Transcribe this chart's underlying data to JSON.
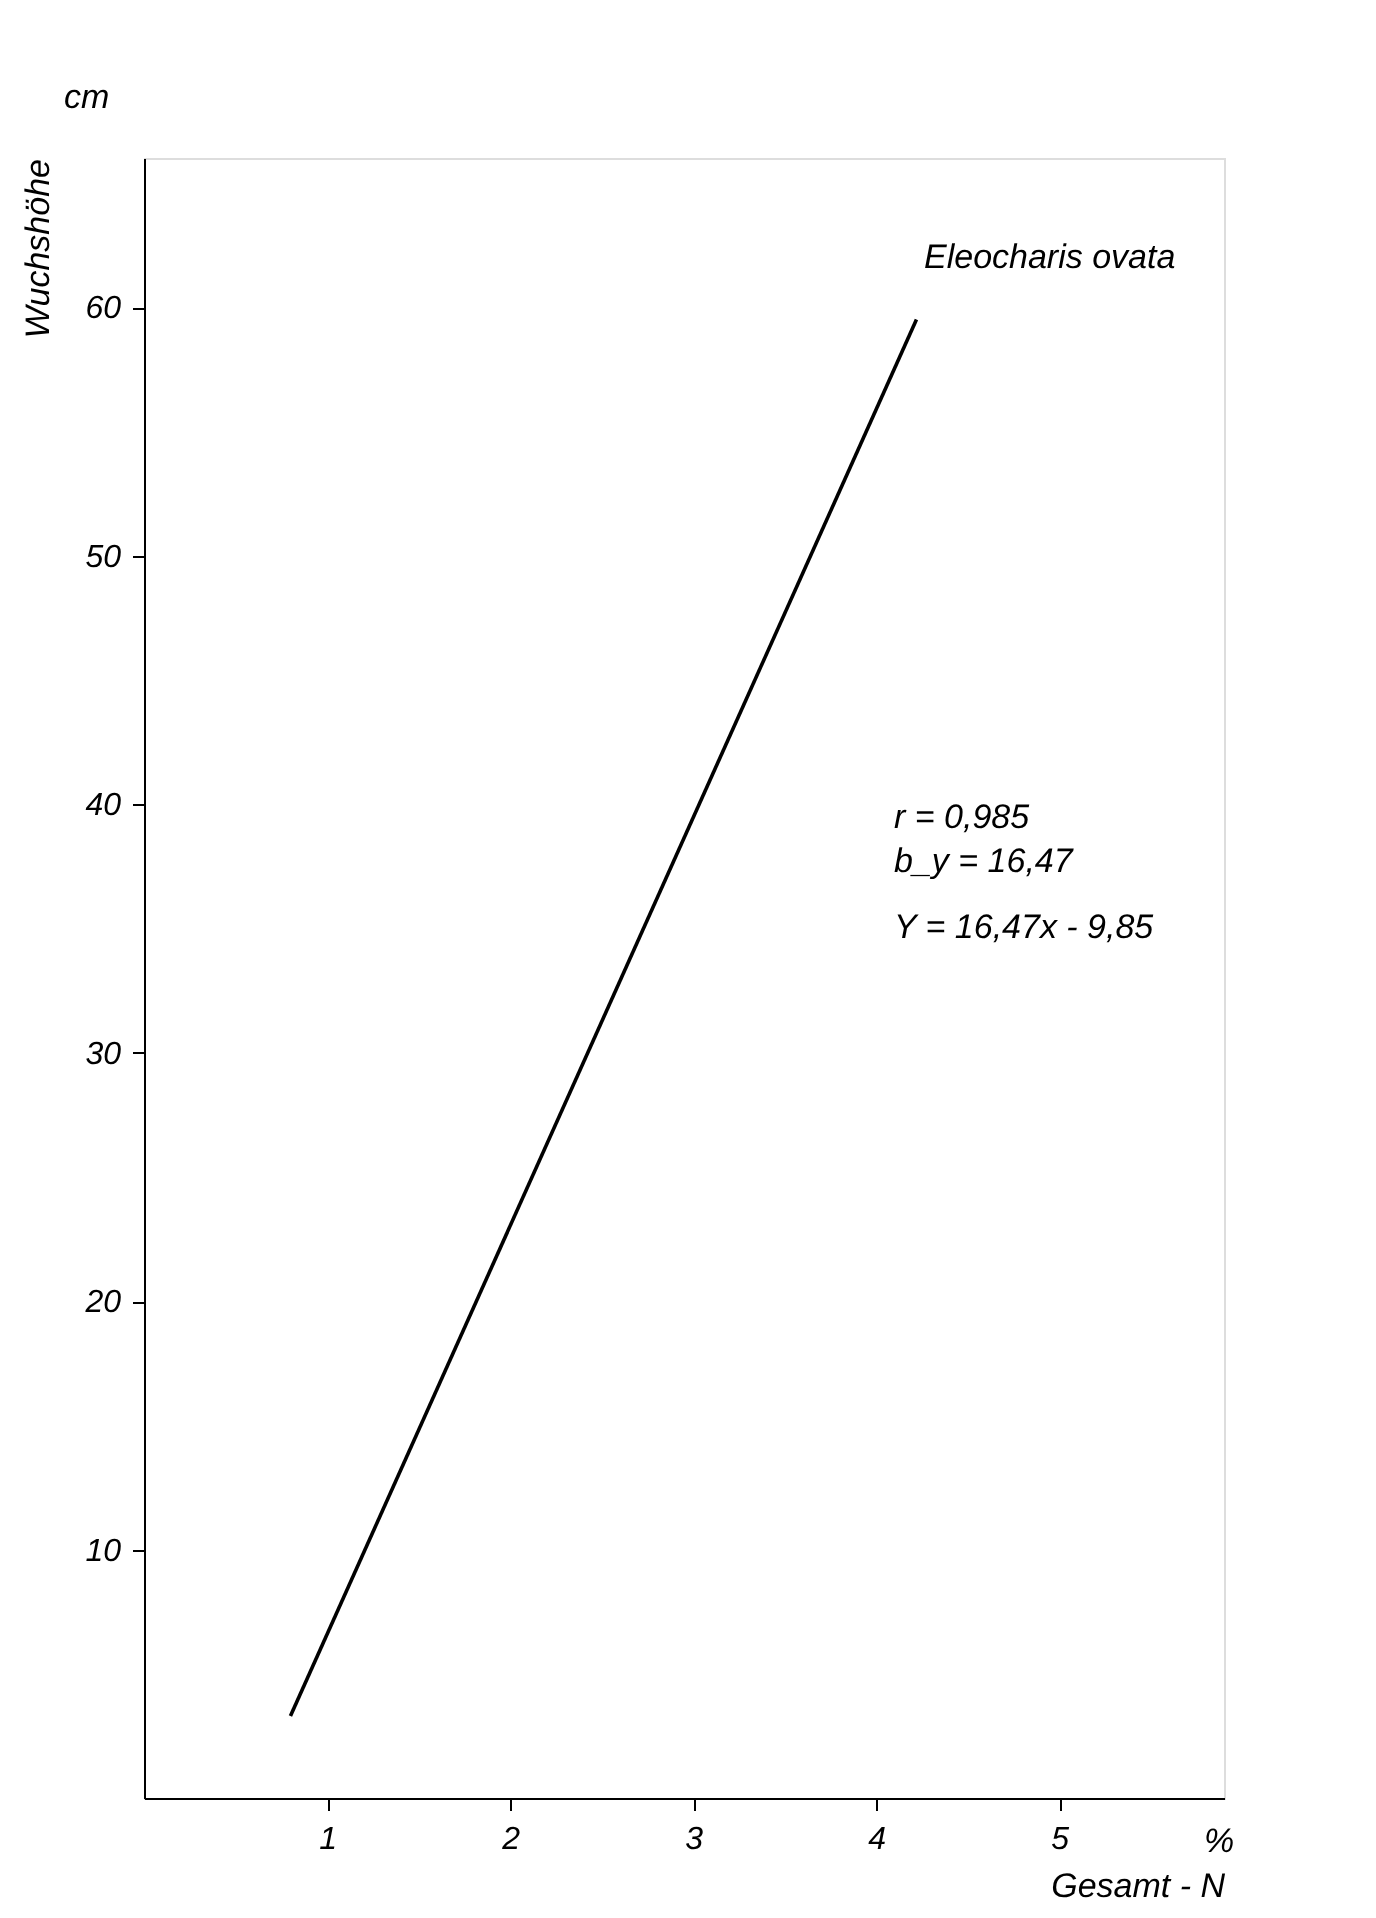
{
  "chart_data": {
    "type": "line",
    "xlabel": "Gesamt - N",
    "ylabel": "Wuchshöhe",
    "series": [
      {
        "color": "#000000",
        "x": [
          0.8,
          4.22
        ],
        "values": [
          3.3,
          59.5
        ]
      }
    ],
    "xlim": [
      0,
      5.9
    ],
    "ylim": [
      0,
      66
    ],
    "xticks": [
      1,
      2,
      3,
      4,
      5
    ],
    "yticks": [
      10,
      20,
      30,
      40,
      50,
      60
    ],
    "grid": false,
    "marker": "none",
    "line_style": "solid",
    "annotations": [
      "Eleocharis ovata",
      "r = 0,985",
      "b_y = 16,47",
      "Y = 16,47x - 9,85",
      "cm",
      "%"
    ]
  }
}
